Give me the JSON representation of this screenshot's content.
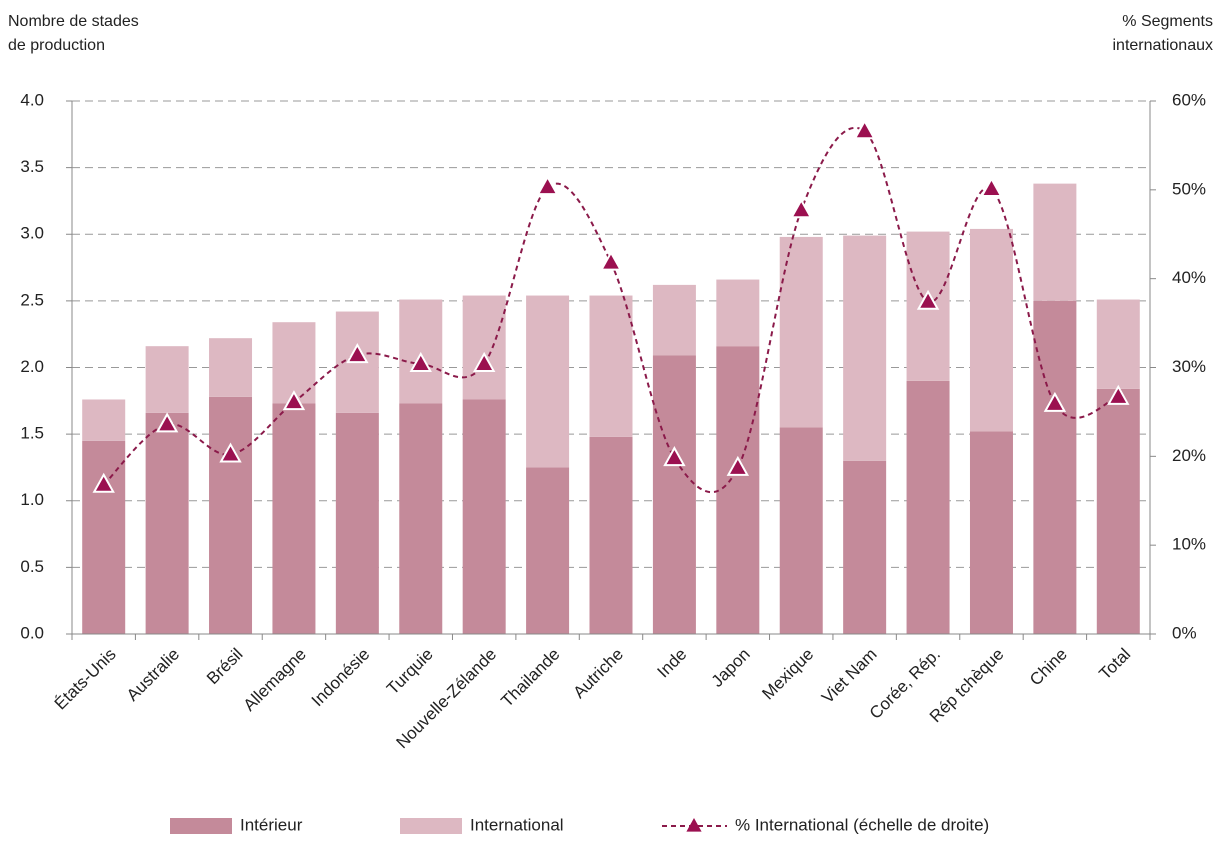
{
  "chart_data": {
    "type": "bar_line",
    "y_label": [
      "Nombre de stades",
      "de production"
    ],
    "y2_label": [
      "% Segments",
      "internationaux"
    ],
    "categories": [
      "États-Unis",
      "Australie",
      "Brésil",
      "Allemagne",
      "Indonésie",
      "Turquie",
      "Nouvelle-Zélande",
      "Thailande",
      "Autriche",
      "Inde",
      "Japon",
      "Mexique",
      "Viet Nam",
      "Corée, Rép.",
      "Rép tchèque",
      "Chine",
      "Total"
    ],
    "series": [
      {
        "name": "Intérieur",
        "color": "#c48a9a",
        "type": "bar",
        "values": [
          1.45,
          1.66,
          1.78,
          1.73,
          1.66,
          1.73,
          1.76,
          1.25,
          1.48,
          2.09,
          2.16,
          1.55,
          1.3,
          1.9,
          1.52,
          2.5,
          1.84
        ]
      },
      {
        "name": "International",
        "color": "#ddb8c2",
        "type": "bar",
        "values": [
          0.31,
          0.5,
          0.44,
          0.61,
          0.76,
          0.78,
          0.78,
          1.29,
          1.06,
          0.53,
          0.5,
          1.43,
          1.69,
          1.12,
          1.52,
          0.88,
          0.67
        ]
      },
      {
        "name": "% International (échelle de droite)",
        "color": "#8b1a4a",
        "type": "line",
        "axis": "y2",
        "values": [
          16.8,
          23.6,
          20.2,
          26.1,
          31.4,
          30.4,
          30.4,
          50.3,
          41.8,
          19.8,
          18.7,
          47.7,
          56.6,
          37.4,
          50.1,
          25.9,
          26.7
        ]
      }
    ],
    "ylim": [
      0,
      4
    ],
    "yticks": [
      {
        "value": 0,
        "label": "0.0"
      },
      0.5,
      {
        "value": 1,
        "label": "1.0"
      },
      1.5,
      {
        "value": 2,
        "label": "2.0"
      },
      2.5,
      {
        "value": 3,
        "label": "3.0"
      },
      3.5,
      {
        "value": 4,
        "label": "4.0"
      }
    ],
    "y2lim": [
      0,
      60
    ],
    "y2ticks": [
      {
        "value": 0,
        "label": "0%"
      },
      {
        "value": 10,
        "label": "10%"
      },
      {
        "value": 20,
        "label": "20%"
      },
      {
        "value": 30,
        "label": "30%"
      },
      {
        "value": 40,
        "label": "40%"
      },
      {
        "value": 50,
        "label": "50%"
      },
      {
        "value": 60,
        "label": "60%"
      }
    ],
    "grid": true,
    "stacked": true,
    "legend": "bottom"
  }
}
